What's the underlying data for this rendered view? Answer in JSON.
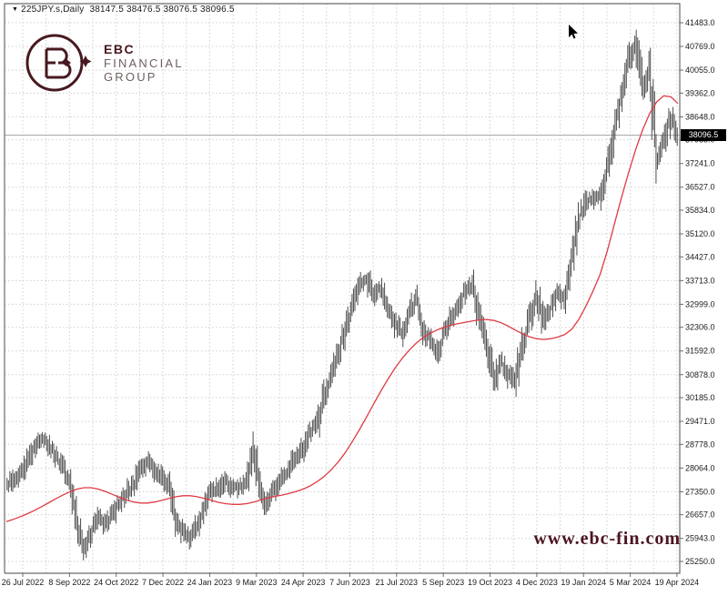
{
  "window": {
    "marker": "▼",
    "symbol": "225JPY.s,Daily",
    "ohlc_text": "38147.5 38476.5 38076.5 38096.5"
  },
  "logo": {
    "company": "EBC Financial Group",
    "line1": "EBC",
    "line2": "FINANCIAL",
    "line3": "GROUP"
  },
  "watermark": "www.ebc-fin.com",
  "price_tag": "38096.5",
  "colors": {
    "brand": "#47191f",
    "watermark_text": "#4b1420",
    "candle": "#4d4d4d",
    "ma_line": "#dd3b44",
    "grid": "#cfcfcf",
    "frame": "#6b6b6b",
    "axis_text": "#1b1b1b",
    "current_price_line": "#a8a8a8",
    "price_tag_bg": "#000000",
    "price_tag_fg": "#ffffff"
  },
  "chart_data": {
    "type": "candlestick",
    "symbol": "225JPY.s",
    "timeframe": "Daily",
    "ohlc": {
      "open": 38147.5,
      "high": 38476.5,
      "low": 38076.5,
      "close": 38096.5
    },
    "current_price": 38096.5,
    "ylim": [
      25250,
      41483
    ],
    "grid": true,
    "y_ticks": [
      41483,
      40769,
      40055,
      39362,
      38648,
      37955,
      37241,
      36527,
      35834,
      35120,
      34427,
      33713,
      32999,
      32306,
      31592,
      30878,
      30185,
      29471,
      28778,
      28064,
      27350,
      26657,
      25943,
      25250
    ],
    "x_ticks": [
      "26 Jul 2022",
      "8 Sep 2022",
      "24 Oct 2022",
      "7 Dec 2022",
      "24 Jan 2023",
      "9 Mar 2023",
      "24 Apr 2023",
      "7 Jun 2023",
      "21 Jul 2023",
      "5 Sep 2023",
      "19 Oct 2023",
      "4 Dec 2023",
      "19 Jan 2024",
      "5 Mar 2024",
      "19 Apr 2024"
    ],
    "extremes": {
      "high": 41250,
      "low": 25300
    },
    "series": [
      {
        "name": "225JPY.s daily price (weekly sampled closes)",
        "style": "candles",
        "color": "#4d4d4d",
        "values": [
          27500,
          27750,
          27850,
          28300,
          28700,
          29000,
          28750,
          28400,
          28100,
          27650,
          26500,
          25650,
          26150,
          26550,
          26300,
          26650,
          27000,
          27350,
          27550,
          28000,
          28250,
          28000,
          27800,
          27500,
          26400,
          26150,
          25950,
          26350,
          26900,
          27350,
          27450,
          27650,
          27450,
          27500,
          27650,
          28600,
          27300,
          26950,
          27450,
          27850,
          28050,
          28400,
          28650,
          29150,
          29400,
          30300,
          30900,
          31500,
          32300,
          32900,
          33600,
          33750,
          33250,
          33500,
          32900,
          32400,
          32150,
          32750,
          33200,
          32250,
          31900,
          31550,
          32100,
          32600,
          33000,
          33450,
          33550,
          32550,
          31900,
          30600,
          31300,
          30900,
          30650,
          31800,
          32500,
          33300,
          32500,
          32900,
          33300,
          33150,
          34300,
          35600,
          36100,
          36200,
          36300,
          37100,
          38300,
          39200,
          40300,
          41000,
          39400,
          40200,
          37300,
          37900,
          38650,
          38100
        ]
      },
      {
        "name": "moving average",
        "style": "line",
        "color": "#dd3b44",
        "values": [
          26450,
          26520,
          26600,
          26690,
          26790,
          26900,
          27020,
          27140,
          27250,
          27350,
          27430,
          27470,
          27470,
          27430,
          27360,
          27270,
          27180,
          27100,
          27040,
          27010,
          27010,
          27040,
          27090,
          27150,
          27200,
          27230,
          27230,
          27200,
          27150,
          27090,
          27030,
          26990,
          26970,
          26970,
          26990,
          27040,
          27100,
          27160,
          27210,
          27250,
          27300,
          27360,
          27430,
          27530,
          27660,
          27820,
          28020,
          28260,
          28550,
          28880,
          29240,
          29620,
          30010,
          30390,
          30750,
          31080,
          31370,
          31620,
          31830,
          32000,
          32130,
          32230,
          32310,
          32370,
          32420,
          32460,
          32500,
          32530,
          32540,
          32510,
          32440,
          32340,
          32220,
          32110,
          32020,
          31960,
          31940,
          31960,
          32010,
          32090,
          32250,
          32550,
          32950,
          33400,
          33900,
          34600,
          35400,
          36200,
          36950,
          37650,
          38250,
          38750,
          39100,
          39280,
          39250,
          39050
        ]
      }
    ]
  }
}
